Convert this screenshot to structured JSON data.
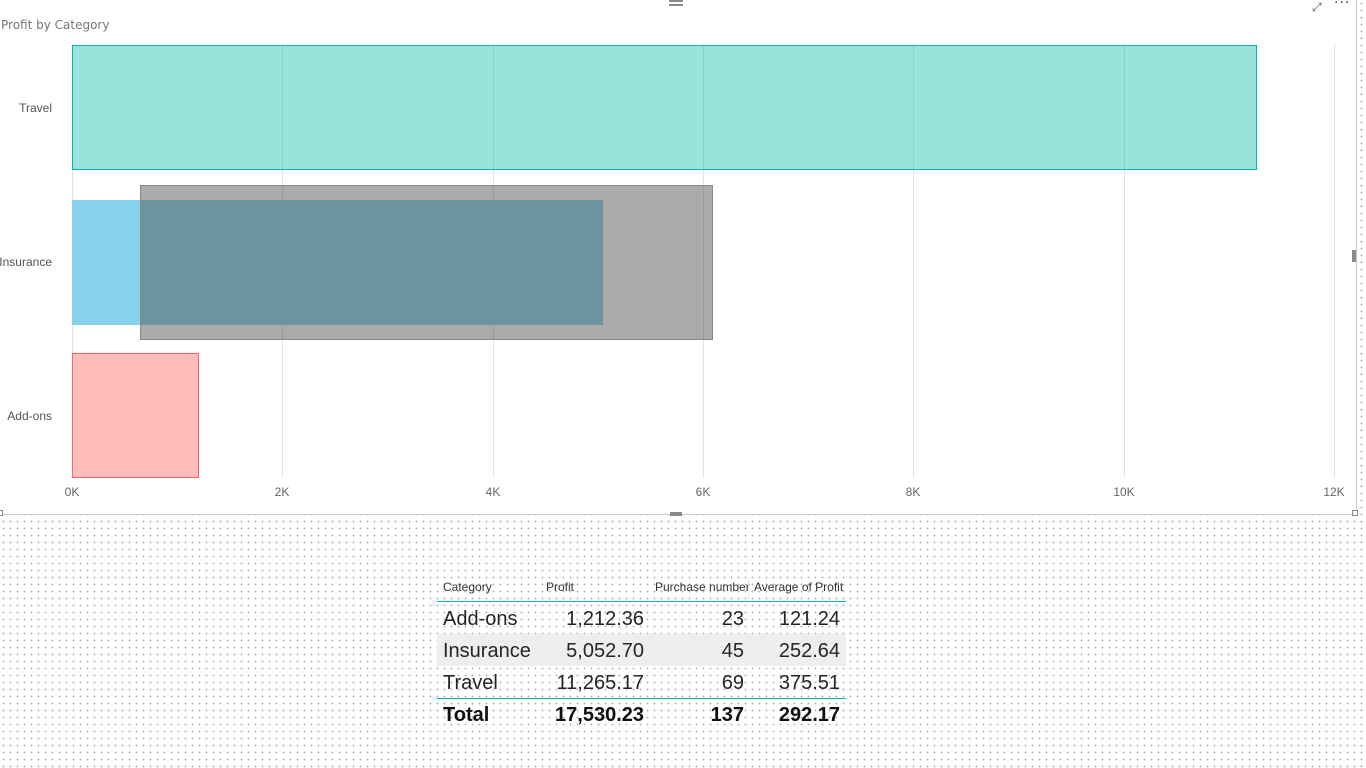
{
  "visual": {
    "title": "Profit by Category",
    "focus_icon": "⤢",
    "more_icon": "···"
  },
  "chart_data": {
    "type": "bar",
    "orientation": "horizontal",
    "title": "Profit by Category",
    "categories": [
      "Travel",
      "Insurance",
      "Add-ons"
    ],
    "series": [
      {
        "name": "Profit",
        "values": [
          11265.17,
          5052.7,
          1212.36
        ]
      }
    ],
    "colors": {
      "Travel": "#01b8aa",
      "Insurance": "#87d1ea",
      "Add-ons": "#fd625e",
      "overlay": "#4c4c4c"
    },
    "overlay_on": "Insurance",
    "overlay_range": [
      650,
      6100
    ],
    "x_ticks": [
      "0K",
      "2K",
      "4K",
      "6K",
      "8K",
      "10K",
      "12K"
    ],
    "xlim": [
      0,
      12000
    ],
    "grid": true,
    "legend": "none"
  },
  "table": {
    "columns": [
      "Category",
      "Profit",
      "Purchase number",
      "Average of Profit"
    ],
    "rows": [
      [
        "Add-ons",
        "1,212.36",
        "23",
        "121.24"
      ],
      [
        "Insurance",
        "5,052.70",
        "45",
        "252.64"
      ],
      [
        "Travel",
        "11,265.17",
        "69",
        "375.51"
      ]
    ],
    "total": [
      "Total",
      "17,530.23",
      "137",
      "292.17"
    ]
  }
}
